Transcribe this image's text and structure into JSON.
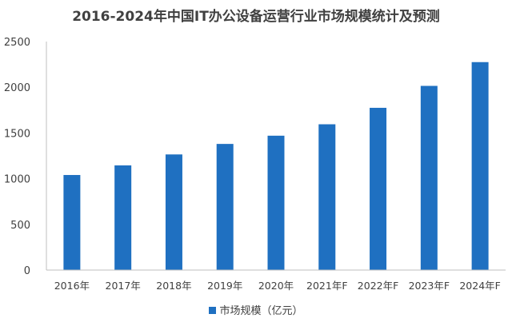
{
  "chart_data": {
    "type": "bar",
    "title": "2016-2024年中国IT办公设备运营行业市场规模统计及预测",
    "xlabel": "",
    "ylabel": "",
    "categories": [
      "2016年",
      "2017年",
      "2018年",
      "2019年",
      "2020年",
      "2021年F",
      "2022年F",
      "2023年F",
      "2024年F"
    ],
    "series": [
      {
        "name": "市场规模（亿元）",
        "color": "#1f70c1",
        "values": [
          1040,
          1145,
          1265,
          1380,
          1470,
          1595,
          1775,
          2015,
          2275
        ]
      }
    ],
    "ylim": [
      0,
      2500
    ],
    "yticks": [
      0,
      500,
      1000,
      1500,
      2000,
      2500
    ],
    "grid": false,
    "legend_position": "bottom"
  }
}
